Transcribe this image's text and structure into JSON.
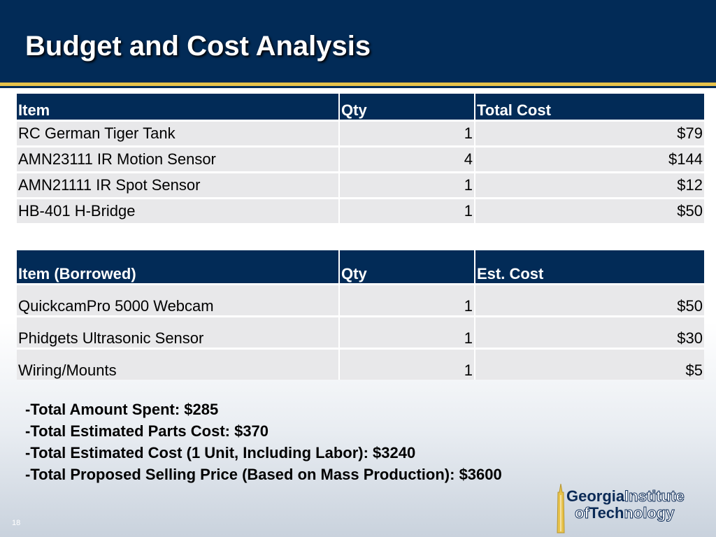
{
  "slide": {
    "title": "Budget and Cost Analysis",
    "page_number": "18"
  },
  "purchased_table": {
    "headers": [
      "Item",
      "Qty",
      "Total Cost"
    ],
    "rows": [
      {
        "item": "RC German Tiger Tank",
        "qty": "1",
        "cost": "$79"
      },
      {
        "item": "AMN23111 IR Motion Sensor",
        "qty": "4",
        "cost": "$144"
      },
      {
        "item": "AMN21111 IR Spot Sensor",
        "qty": "1",
        "cost": "$12"
      },
      {
        "item": "HB-401 H-Bridge",
        "qty": "1",
        "cost": "$50"
      }
    ]
  },
  "borrowed_table": {
    "headers": [
      "Item (Borrowed)",
      "Qty",
      "Est. Cost"
    ],
    "rows": [
      {
        "item": "QuickcamPro 5000 Webcam",
        "qty": "1",
        "cost": "$50"
      },
      {
        "item": "Phidgets Ultrasonic Sensor",
        "qty": "1",
        "cost": "$30"
      },
      {
        "item": "Wiring/Mounts",
        "qty": "1",
        "cost": "$5"
      }
    ]
  },
  "summary": [
    "-Total Amount Spent: $285",
    "-Total Estimated Parts Cost: $370",
    "-Total Estimated Cost (1 Unit, Including Labor): $3240",
    "-Total Proposed Selling Price (Based on Mass Production): $3600"
  ],
  "logo": {
    "line1_bold": "Georgia",
    "line1_outline": "Institute",
    "line2_outline": "of",
    "line2_bold": "Tech",
    "line2_outline_end": "nology"
  },
  "colors": {
    "navy": "#022b57",
    "gold": "#e7c24b",
    "cell_gray": "#e8e8ea"
  }
}
